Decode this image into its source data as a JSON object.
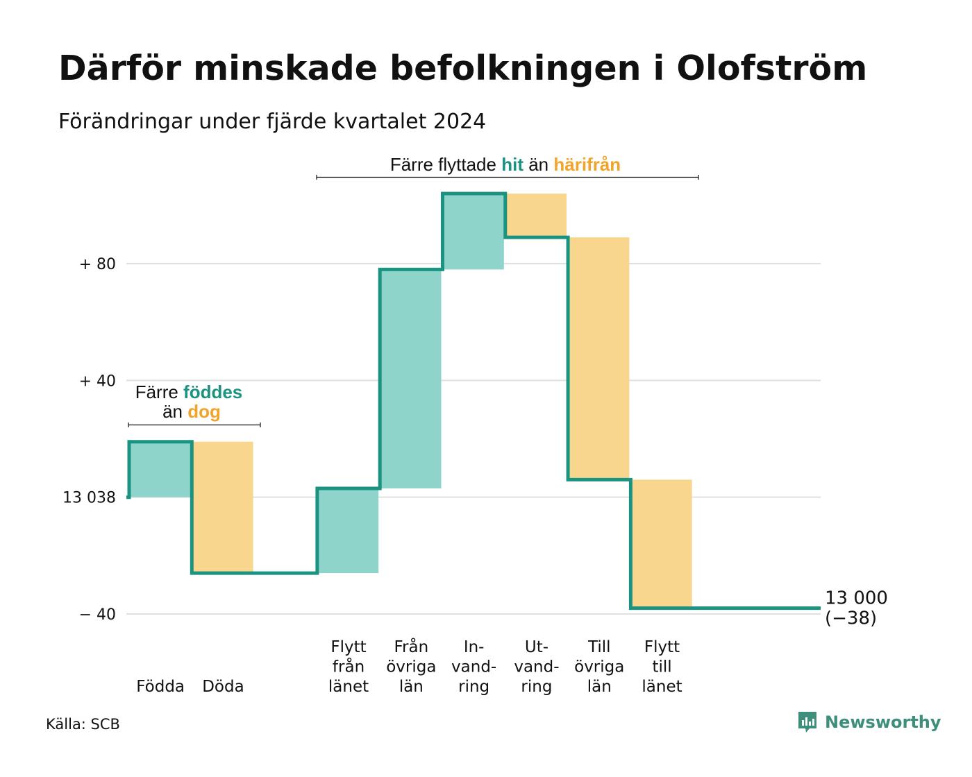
{
  "title": "Därför minskade befolkningen i Olofström",
  "subtitle": "Förändringar under fjärde kvartalet 2024",
  "source": "Källa: SCB",
  "brand": {
    "name": "Newsworthy",
    "icon": "newsworthy-logo-icon"
  },
  "colors": {
    "line": "#1a9381",
    "inflow": "#8fd4cb",
    "outflow": "#f9d68d",
    "accent_in": "#1a9381",
    "accent_out": "#f2a32a",
    "grid": "#e0e0e0"
  },
  "annotations": {
    "birth": {
      "line1_a": "Färre ",
      "line1_b": "föddes",
      "line2_a": "än ",
      "line2_b": "dog"
    },
    "move": {
      "a": "Färre flyttade ",
      "b": "hit",
      "c": " än ",
      "d": "härifrån"
    }
  },
  "chart_data": {
    "type": "waterfall",
    "baseline": 13038,
    "ylim": [
      -45,
      120
    ],
    "yticks": [
      {
        "value": 80,
        "label": "+ 80"
      },
      {
        "value": 40,
        "label": "+ 40"
      },
      {
        "value": 0,
        "label": "13 038"
      },
      {
        "value": -40,
        "label": "− 40"
      }
    ],
    "steps": [
      {
        "label": [
          "Födda"
        ],
        "kind": "in",
        "value": 19
      },
      {
        "label": [
          "Döda"
        ],
        "kind": "out",
        "value": -45
      },
      {
        "label": [],
        "kind": "gap",
        "value": 0
      },
      {
        "label": [
          "Flytt",
          "från",
          "länet"
        ],
        "kind": "in",
        "value": 29
      },
      {
        "label": [
          "Från",
          "övriga",
          "län"
        ],
        "kind": "in",
        "value": 75
      },
      {
        "label": [
          "In-",
          "vand-",
          "ring"
        ],
        "kind": "in",
        "value": 26
      },
      {
        "label": [
          "Ut-",
          "vand-",
          "ring"
        ],
        "kind": "out",
        "value": -15
      },
      {
        "label": [
          "Till",
          "övriga",
          "län"
        ],
        "kind": "out",
        "value": -83
      },
      {
        "label": [
          "Flytt",
          "till",
          "länet"
        ],
        "kind": "out",
        "value": -44
      }
    ],
    "end_label": [
      "13 000",
      "(−38)"
    ],
    "grid": true
  }
}
